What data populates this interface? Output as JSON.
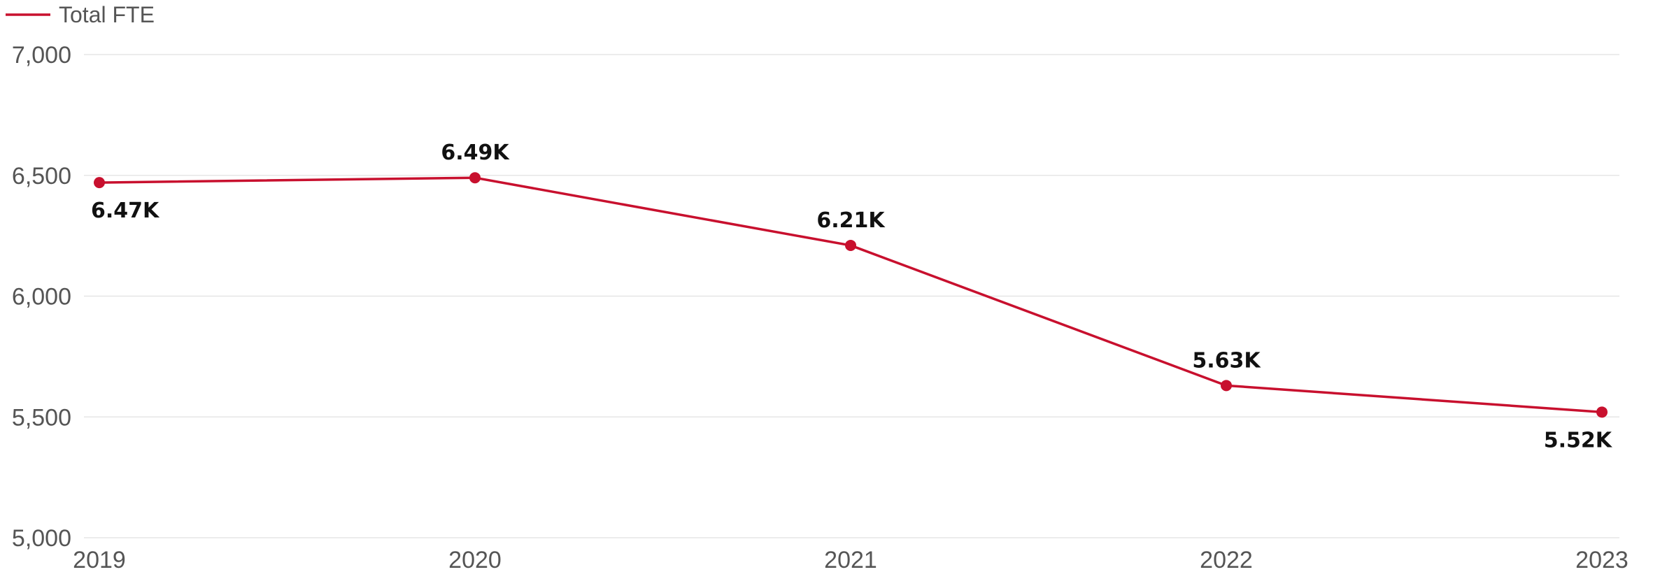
{
  "chart_data": {
    "type": "line",
    "title": "",
    "xlabel": "",
    "ylabel": "",
    "categories": [
      "2019",
      "2020",
      "2021",
      "2022",
      "2023"
    ],
    "series": [
      {
        "name": "Total FTE",
        "values": [
          6470,
          6490,
          6210,
          5630,
          5520
        ],
        "labels": [
          "6.47K",
          "6.49K",
          "6.21K",
          "5.63K",
          "5.52K"
        ],
        "label_position": [
          "below",
          "above",
          "above",
          "above",
          "below"
        ]
      }
    ],
    "ylim": [
      5000,
      7000
    ],
    "yticks": [
      5000,
      5500,
      6000,
      6500,
      7000
    ],
    "ytick_labels": [
      "5,000",
      "5,500",
      "6,000",
      "6,500",
      "7,000"
    ],
    "grid": true,
    "legend": "top-left",
    "colors": {
      "series": "#C8102E",
      "grid": "#e6e6e6",
      "tick_text": "#555555",
      "data_label": "#111111"
    }
  }
}
